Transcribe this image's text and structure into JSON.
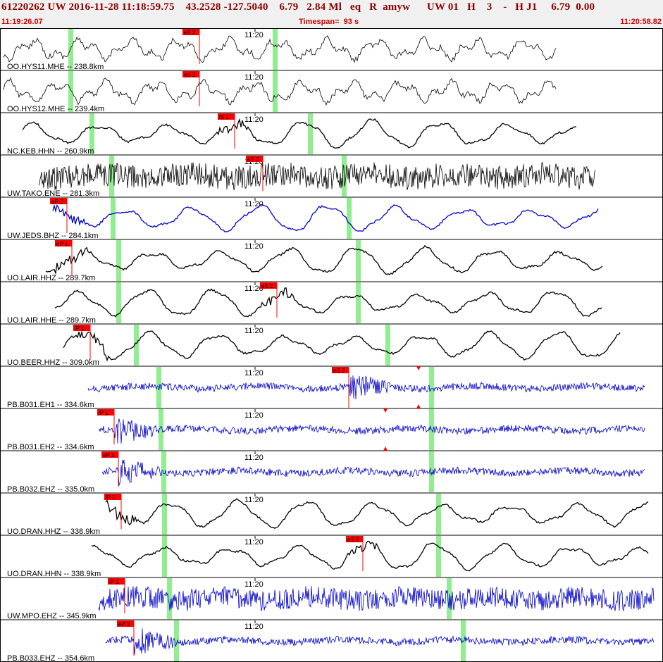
{
  "header": {
    "title": "61220262 UW 2016-11-28 11:18:59.75    43.2528 -127.5040    6.79   2.84 Ml   eq   R  amyw      UW 01   H    3    -   H J1     6.79  0.00",
    "start_time": "11:19:26.07",
    "timespan": "Timespan=  93 s",
    "end_time": "11:20:58.82"
  },
  "time_label": "11:20",
  "colors": {
    "wave_black": "#000000",
    "wave_blue": "#0000cc",
    "pick_red": "#ff0000",
    "green_marker": "#90ee90",
    "grid": "#000000"
  },
  "channels": [
    {
      "label": "OO.HYS11.MHE -- 238.8km",
      "color": "black",
      "pick": "eS 2",
      "style": "mhe"
    },
    {
      "label": "OO.HYS12.MHE -- 239.4km",
      "color": "black",
      "pick": "eS 2",
      "style": "mhe"
    },
    {
      "label": "NC.KEB.HHN -- 260.9km",
      "color": "black",
      "pick": "iS 1",
      "style": "slow"
    },
    {
      "label": "UW.TAKO.ENE -- 281.3km",
      "color": "black",
      "pick": "eS 2",
      "style": "dense"
    },
    {
      "label": "UW.JEDS.BHZ -- 284.1km",
      "color": "blue",
      "pick": "eP 2",
      "style": "slow"
    },
    {
      "label": "UO.LAIR.HHZ -- 289.7km",
      "color": "black",
      "pick": "eP 1",
      "style": "slow"
    },
    {
      "label": "UO.LAIR.HHE -- 289.7km",
      "color": "black",
      "pick": "eS 2",
      "style": "slow"
    },
    {
      "label": "UO.BEER.HHZ -- 309.0km",
      "color": "black",
      "pick": "iP 1",
      "style": "slow"
    },
    {
      "label": "PB.B031.EH1 -- 334.6km",
      "color": "blue",
      "pick": "eS 2",
      "style": "burst"
    },
    {
      "label": "PB.B031.EH2 -- 334.6km",
      "color": "blue",
      "pick": "iP 1",
      "style": "burst"
    },
    {
      "label": "PB.B032.EHZ -- 335.0km",
      "color": "blue",
      "pick": "eP 2",
      "style": "burst"
    },
    {
      "label": "UO.DRAN.HHZ -- 338.9km",
      "color": "black",
      "pick": "iP 1",
      "style": "slow"
    },
    {
      "label": "UO.DRAN.HHN -- 338.9km",
      "color": "black",
      "pick": "eS 2",
      "style": "slow"
    },
    {
      "label": "UW.MPO.EHZ -- 345.9km",
      "color": "blue",
      "pick": "iP 1",
      "style": "dense"
    },
    {
      "label": "PB.B033.EHZ -- 354.6km",
      "color": "blue",
      "pick": "eP 2",
      "style": "burst"
    }
  ]
}
